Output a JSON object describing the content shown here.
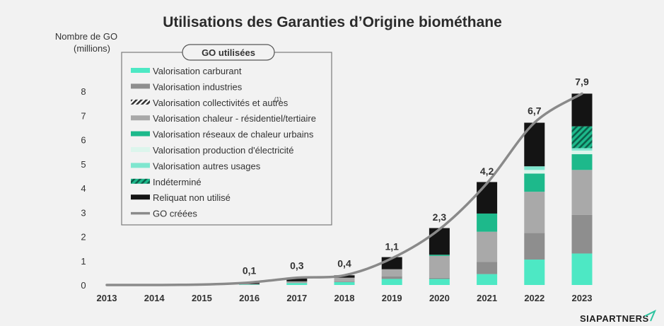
{
  "chart_data": {
    "type": "bar",
    "stacked": true,
    "title": "Utilisations des Garanties d’Origine biométhane",
    "ylabel_line1": "Nombre de GO",
    "ylabel_line2": "(millions)",
    "xlabel": "",
    "ylim": [
      0,
      8
    ],
    "yticks": [
      "0",
      "1",
      "2",
      "3",
      "4",
      "5",
      "6",
      "7",
      "8"
    ],
    "grid": false,
    "legend_placement": "top-left",
    "legend_title": "GO utilisées",
    "categories": [
      "2013",
      "2014",
      "2015",
      "2016",
      "2017",
      "2018",
      "2019",
      "2020",
      "2021",
      "2022",
      "2023"
    ],
    "series": [
      {
        "name": "Valorisation carburant",
        "color": "#4de8c4",
        "pattern": "solid",
        "values": [
          0,
          0,
          0,
          0.02,
          0.08,
          0.12,
          0.25,
          0.25,
          0.45,
          1.05,
          1.3
        ]
      },
      {
        "name": "Valorisation industries",
        "color": "#8e8e8e",
        "pattern": "solid",
        "values": [
          0,
          0,
          0,
          0,
          0.02,
          0.03,
          0.1,
          0.05,
          0.5,
          1.1,
          1.6
        ]
      },
      {
        "name": "Valorisation collectivités et autres",
        "superscript": "(1)",
        "color": "#333333",
        "pattern": "hatch",
        "values": [
          0,
          0,
          0,
          0,
          0,
          0,
          0,
          0,
          0,
          0,
          0
        ]
      },
      {
        "name": "Valorisation chaleur - résidentiel/tertiaire",
        "color": "#a9a9a9",
        "pattern": "solid",
        "values": [
          0,
          0,
          0,
          0.02,
          0.05,
          0.15,
          0.3,
          0.9,
          1.25,
          1.7,
          1.85
        ]
      },
      {
        "name": "Valorisation réseaux de chaleur urbains",
        "color": "#1db98b",
        "pattern": "solid",
        "values": [
          0,
          0,
          0,
          0,
          0,
          0,
          0,
          0.05,
          0.75,
          0.75,
          0.65
        ]
      },
      {
        "name": "Valorisation production d'électricité",
        "color": "#dcf5ec",
        "pattern": "solid",
        "values": [
          0,
          0,
          0,
          0,
          0,
          0,
          0,
          0,
          0,
          0.15,
          0.15
        ]
      },
      {
        "name": "Valorisation autres usages",
        "color": "#7fe6cf",
        "pattern": "solid",
        "values": [
          0,
          0,
          0,
          0,
          0,
          0,
          0,
          0,
          0,
          0.15,
          0.1
        ]
      },
      {
        "name": "Indéterminé",
        "color": "#1db98b",
        "pattern": "hatch",
        "values": [
          0,
          0,
          0,
          0,
          0,
          0,
          0,
          0,
          0,
          0,
          0.9
        ]
      },
      {
        "name": "Reliquat non utilisé",
        "color": "#141414",
        "pattern": "solid",
        "values": [
          0,
          0,
          0,
          0.04,
          0.15,
          0.1,
          0.5,
          1.1,
          1.3,
          1.8,
          1.35
        ]
      }
    ],
    "line_series": {
      "name": "GO créées",
      "color": "#8a8a8a",
      "values": [
        0,
        0,
        0.02,
        0.1,
        0.3,
        0.4,
        1.1,
        2.3,
        4.2,
        6.7,
        7.9
      ]
    },
    "data_labels": [
      "",
      "",
      "",
      "0,1",
      "0,3",
      "0,4",
      "1,1",
      "2,3",
      "4,2",
      "6,7",
      "7,9"
    ]
  },
  "brand": "SIAPARTNERS"
}
